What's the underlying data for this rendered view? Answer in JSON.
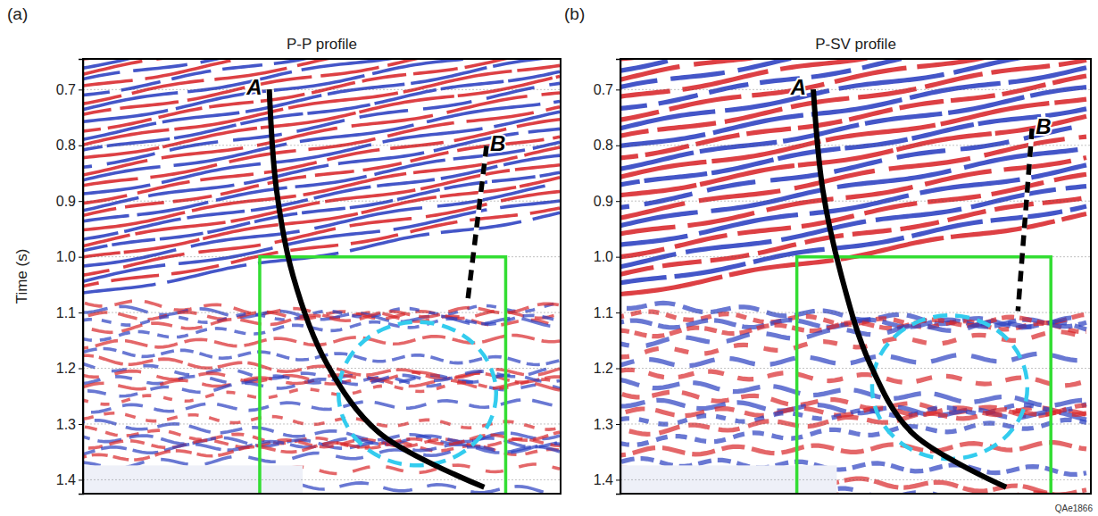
{
  "chart_data": [
    {
      "type": "seismic_section",
      "panel": "(a)",
      "title": "P-P profile",
      "y_label": "Time (s)",
      "ylim": [
        0.645,
        1.425
      ],
      "yticks": [
        0.7,
        0.8,
        0.9,
        {
          "value": 1,
          "label": "1.0"
        },
        1.1,
        1.2,
        1.3,
        1.4
      ],
      "grid": true,
      "annotations": [
        "A",
        "B"
      ]
    },
    {
      "type": "seismic_section",
      "panel": "(b)",
      "title": "P-SV profile",
      "ylim": [
        0.645,
        1.425
      ],
      "yticks": [
        0.7,
        0.8,
        0.9,
        {
          "value": 1,
          "label": "1.0"
        },
        1.1,
        1.2,
        1.3,
        1.4
      ],
      "grid": true,
      "annotations": [
        "A",
        "B"
      ]
    }
  ],
  "footer": "QAe1866"
}
